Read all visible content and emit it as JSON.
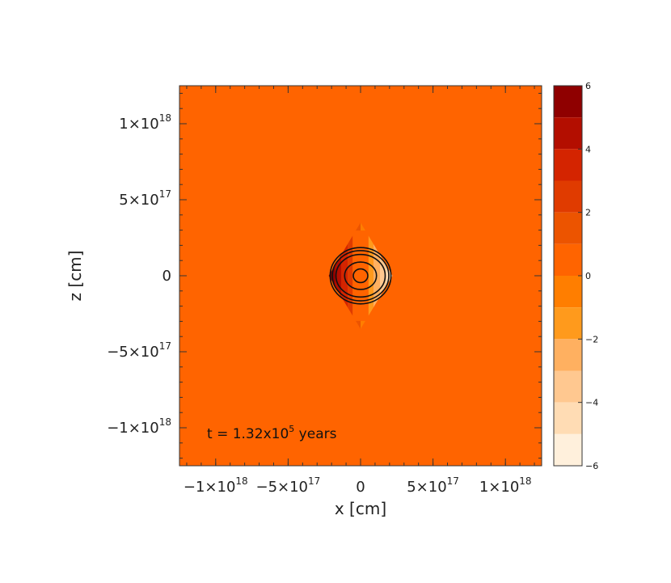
{
  "chart_data": {
    "type": "heatmap",
    "xlabel": "x [cm]",
    "ylabel": "z [cm]",
    "xlim": [
      -1.25e+18,
      1.25e+18
    ],
    "ylim": [
      -1.25e+18,
      1.25e+18
    ],
    "x_ticks": [
      {
        "value": -1e+18,
        "label": "−1×10",
        "exp": "18"
      },
      {
        "value": -5e+17,
        "label": "−5×10",
        "exp": "17"
      },
      {
        "value": 0,
        "label": "0",
        "exp": ""
      },
      {
        "value": 5e+17,
        "label": "5×10",
        "exp": "17"
      },
      {
        "value": 1e+18,
        "label": "1×10",
        "exp": "18"
      }
    ],
    "y_ticks": [
      {
        "value": 1e+18,
        "label": "1×10",
        "exp": "18"
      },
      {
        "value": 5e+17,
        "label": "5×10",
        "exp": "17"
      },
      {
        "value": 0,
        "label": "0",
        "exp": ""
      },
      {
        "value": -5e+17,
        "label": "−5×10",
        "exp": "17"
      },
      {
        "value": -1e+18,
        "label": "−1×10",
        "exp": "18"
      }
    ],
    "annotation": {
      "prefix": "t = 1.32x10",
      "exp": "5",
      "suffix": " years"
    },
    "background_level": 0.5,
    "feature": {
      "center": [
        0,
        0
      ],
      "half_width_x": 2.2e+17,
      "half_height_z": 3.5e+17,
      "left_lobe_levels": [
        5,
        4,
        3,
        2,
        1
      ],
      "right_lobe_levels": [
        -5,
        -4,
        -3,
        -2,
        -1
      ]
    },
    "contours": [
      {
        "rx": 2.1e+17,
        "ry": 1.85e+17
      },
      {
        "rx": 1.95e+17,
        "ry": 1.65e+17
      },
      {
        "rx": 1.7e+17,
        "ry": 1.4e+17
      },
      {
        "rx": 1.1e+17,
        "ry": 9e+16
      },
      {
        "rx": 5e+16,
        "ry": 4.5e+16
      }
    ],
    "colorbar": {
      "min": -6,
      "max": 6,
      "tick_values": [
        6,
        4,
        2,
        0,
        -2,
        -4,
        -6
      ],
      "tick_labels": [
        "6",
        "4",
        "2",
        "0",
        "−2",
        "−4",
        "−6"
      ],
      "levels": [
        {
          "from": 5,
          "to": 6,
          "color": "#8f0000"
        },
        {
          "from": 4,
          "to": 5,
          "color": "#b30e00"
        },
        {
          "from": 3,
          "to": 4,
          "color": "#d42400"
        },
        {
          "from": 2,
          "to": 3,
          "color": "#e03b00"
        },
        {
          "from": 1,
          "to": 2,
          "color": "#ec5400"
        },
        {
          "from": 0,
          "to": 1,
          "color": "#ff6400"
        },
        {
          "from": -1,
          "to": 0,
          "color": "#ff7e00"
        },
        {
          "from": -2,
          "to": -1,
          "color": "#ff9a1c"
        },
        {
          "from": -3,
          "to": -2,
          "color": "#ffb060"
        },
        {
          "from": -4,
          "to": -3,
          "color": "#ffc890"
        },
        {
          "from": -5,
          "to": -4,
          "color": "#ffdcb4"
        },
        {
          "from": -6,
          "to": -5,
          "color": "#fff0dc"
        }
      ]
    }
  }
}
